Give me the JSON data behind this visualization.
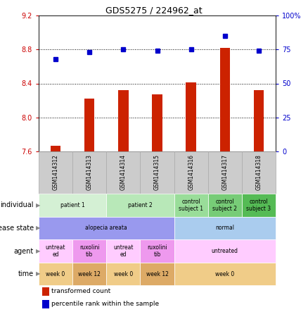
{
  "title": "GDS5275 / 224962_at",
  "samples": [
    "GSM1414312",
    "GSM1414313",
    "GSM1414314",
    "GSM1414315",
    "GSM1414316",
    "GSM1414317",
    "GSM1414318"
  ],
  "transformed_count": [
    7.67,
    8.22,
    8.32,
    8.27,
    8.41,
    8.82,
    8.32
  ],
  "percentile_rank": [
    68,
    73,
    75,
    74,
    75,
    85,
    74
  ],
  "bar_color": "#cc2200",
  "dot_color": "#0000cc",
  "bar_bottom": 7.6,
  "ylim_left": [
    7.6,
    9.2
  ],
  "ylim_right": [
    0,
    100
  ],
  "yticks_left": [
    7.6,
    8.0,
    8.4,
    8.8,
    9.2
  ],
  "yticks_right": [
    0,
    25,
    50,
    75,
    100
  ],
  "ytick_labels_right": [
    "0",
    "25",
    "50",
    "75",
    "100%"
  ],
  "hlines": [
    8.0,
    8.4,
    8.8
  ],
  "sample_color": "#cccccc",
  "table_rows": [
    {
      "label": "individual",
      "cells": [
        {
          "text": "patient 1",
          "colspan": 2,
          "color": "#d4f0d4"
        },
        {
          "text": "patient 2",
          "colspan": 2,
          "color": "#b8e8b8"
        },
        {
          "text": "control\nsubject 1",
          "colspan": 1,
          "color": "#99dd99"
        },
        {
          "text": "control\nsubject 2",
          "colspan": 1,
          "color": "#77cc77"
        },
        {
          "text": "control\nsubject 3",
          "colspan": 1,
          "color": "#55bb55"
        }
      ]
    },
    {
      "label": "disease state",
      "cells": [
        {
          "text": "alopecia areata",
          "colspan": 4,
          "color": "#9999ee"
        },
        {
          "text": "normal",
          "colspan": 3,
          "color": "#aaccee"
        }
      ]
    },
    {
      "label": "agent",
      "cells": [
        {
          "text": "untreat\ned",
          "colspan": 1,
          "color": "#ffccff"
        },
        {
          "text": "ruxolini\ntib",
          "colspan": 1,
          "color": "#ee99ee"
        },
        {
          "text": "untreat\ned",
          "colspan": 1,
          "color": "#ffccff"
        },
        {
          "text": "ruxolini\ntib",
          "colspan": 1,
          "color": "#ee99ee"
        },
        {
          "text": "untreated",
          "colspan": 3,
          "color": "#ffccff"
        }
      ]
    },
    {
      "label": "time",
      "cells": [
        {
          "text": "week 0",
          "colspan": 1,
          "color": "#f0cc88"
        },
        {
          "text": "week 12",
          "colspan": 1,
          "color": "#ddaa66"
        },
        {
          "text": "week 0",
          "colspan": 1,
          "color": "#f0cc88"
        },
        {
          "text": "week 12",
          "colspan": 1,
          "color": "#ddaa66"
        },
        {
          "text": "week 0",
          "colspan": 3,
          "color": "#f0cc88"
        }
      ]
    }
  ],
  "legend_items": [
    {
      "color": "#cc2200",
      "label": "transformed count"
    },
    {
      "color": "#0000cc",
      "label": "percentile rank within the sample"
    }
  ],
  "bg_color": "#ffffff",
  "tick_color_left": "#cc0000",
  "tick_color_right": "#0000cc"
}
